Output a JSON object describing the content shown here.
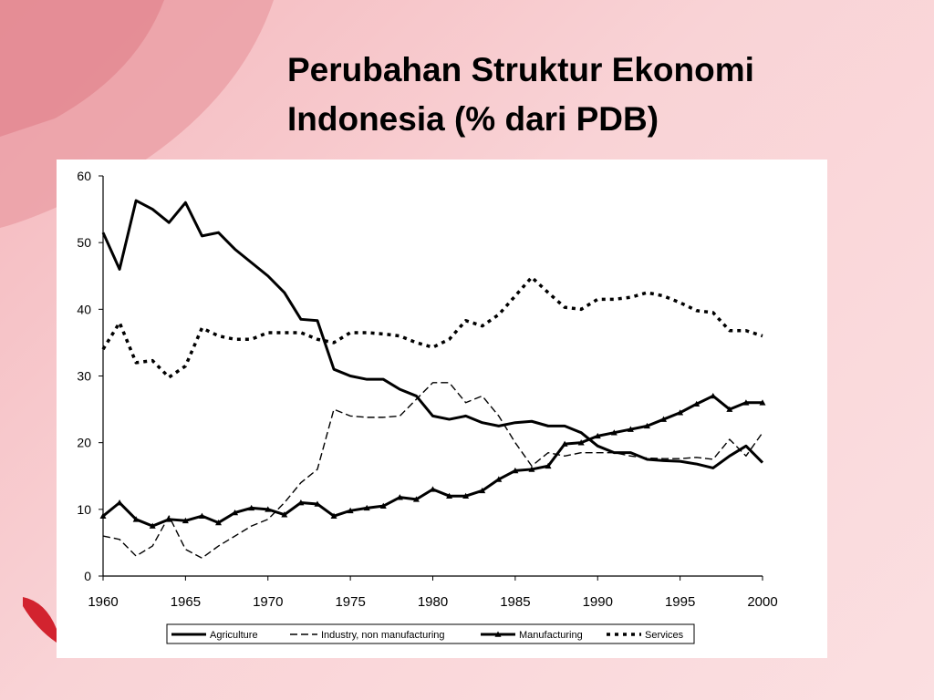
{
  "title": "Perubahan Struktur Ekonomi Indonesia (% dari PDB)",
  "chart_data": {
    "type": "line",
    "x": [
      1960,
      1961,
      1962,
      1963,
      1964,
      1965,
      1966,
      1967,
      1968,
      1969,
      1970,
      1971,
      1972,
      1973,
      1974,
      1975,
      1976,
      1977,
      1978,
      1979,
      1980,
      1981,
      1982,
      1983,
      1984,
      1985,
      1986,
      1987,
      1988,
      1989,
      1990,
      1991,
      1992,
      1993,
      1994,
      1995,
      1996,
      1997,
      1998,
      1999,
      2000
    ],
    "series": [
      {
        "name": "Agriculture",
        "color": "#000000",
        "style": "solid",
        "values": [
          51.5,
          46,
          56.3,
          55,
          53,
          56,
          51,
          51.5,
          49,
          47,
          45,
          42.5,
          38.5,
          38.3,
          31,
          30,
          29.5,
          29.5,
          28,
          27,
          24,
          23.5,
          24,
          23,
          22.5,
          23,
          23.2,
          22.5,
          22.5,
          21.5,
          19.5,
          18.5,
          18.5,
          17.5,
          17.3,
          17.2,
          16.8,
          16.2,
          18,
          19.5,
          17
        ]
      },
      {
        "name": "Industry, non manufacturing",
        "color": "#000000",
        "style": "dashed",
        "values": [
          6,
          5.5,
          3,
          4.5,
          9,
          4,
          2.7,
          4.5,
          6,
          7.5,
          8.5,
          11,
          14,
          16,
          25,
          24,
          23.8,
          23.8,
          24,
          26.5,
          29,
          29,
          26,
          27,
          24,
          20,
          16.5,
          18.5,
          18,
          18.5,
          18.5,
          18.5,
          18,
          17.7,
          17.6,
          17.6,
          17.8,
          17.5,
          20.5,
          18,
          21.5
        ]
      },
      {
        "name": "Manufacturing",
        "color": "#000000",
        "style": "solid",
        "marker": "triangle",
        "values": [
          9,
          11,
          8.5,
          7.5,
          8.5,
          8.3,
          9,
          8,
          9.5,
          10.2,
          10,
          9.2,
          11,
          10.8,
          9,
          9.8,
          10.2,
          10.5,
          11.8,
          11.5,
          13,
          12,
          12,
          12.8,
          14.5,
          15.8,
          16,
          16.5,
          19.8,
          20,
          21,
          21.5,
          22,
          22.5,
          23.5,
          24.5,
          25.8,
          27,
          25,
          26,
          26
        ]
      },
      {
        "name": "Services",
        "color": "#000000",
        "style": "dotted",
        "values": [
          34,
          38,
          32,
          32.3,
          29.8,
          31.5,
          37.2,
          36,
          35.5,
          35.5,
          36.5,
          36.5,
          36.5,
          35.5,
          35,
          36.5,
          36.5,
          36.3,
          36,
          35,
          34.3,
          35.5,
          38.3,
          37.5,
          39.2,
          42,
          44.8,
          42.5,
          40.3,
          40,
          41.5,
          41.5,
          41.8,
          42.5,
          42,
          41,
          39.8,
          39.5,
          36.8,
          36.8,
          36
        ]
      }
    ],
    "xlim": [
      1960,
      2000
    ],
    "xticks": [
      1960,
      1965,
      1970,
      1975,
      1980,
      1985,
      1990,
      1995,
      2000
    ],
    "ylim": [
      0,
      60
    ],
    "yticks": [
      0,
      10,
      20,
      30,
      40,
      50,
      60
    ],
    "legend": "bottom"
  }
}
